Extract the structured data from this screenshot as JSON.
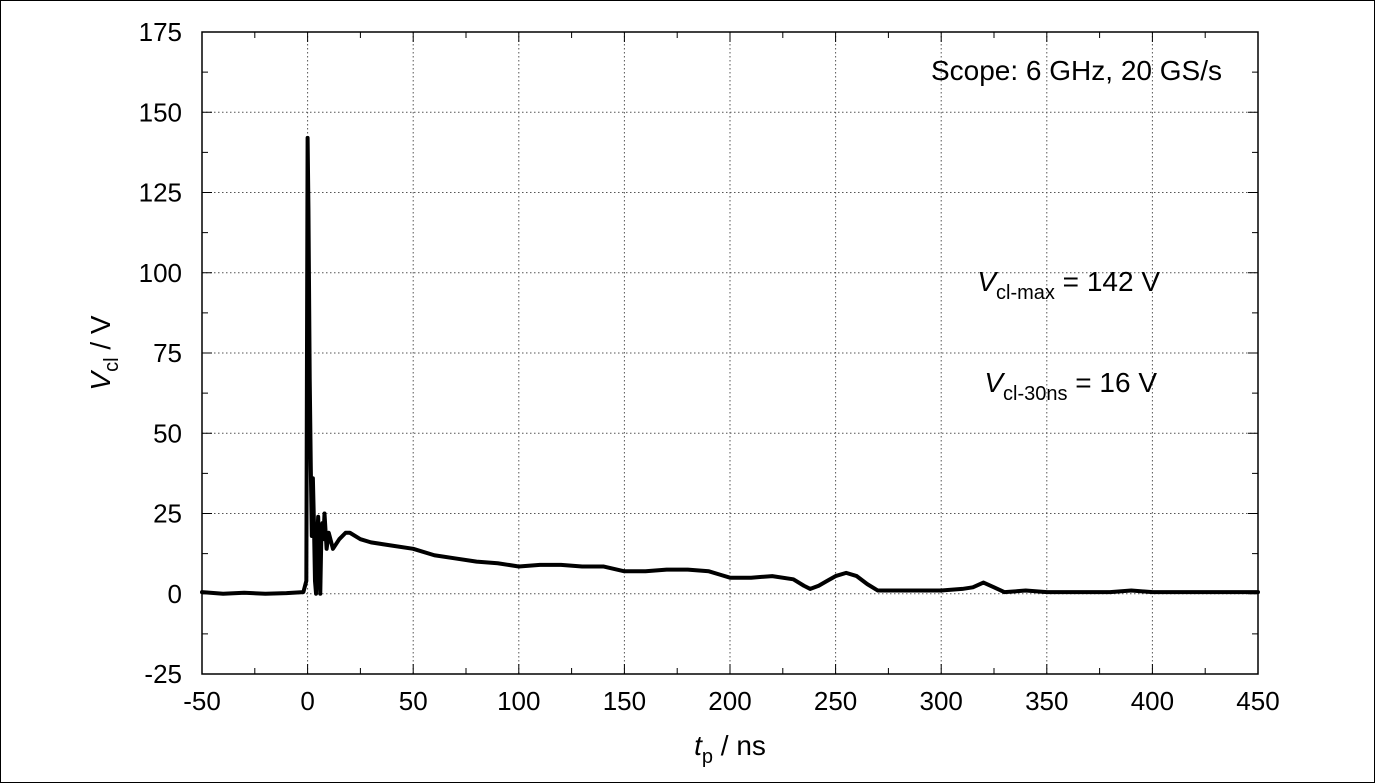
{
  "chart_data": {
    "type": "line",
    "title": "",
    "xlabel": {
      "symbol": "t",
      "subscript": "p",
      "unit": " / ns"
    },
    "ylabel": {
      "symbol": "V",
      "subscript": "cl",
      "unit": " / V"
    },
    "xlim": [
      -50,
      450
    ],
    "ylim": [
      -25,
      175
    ],
    "xticks": [
      -50,
      0,
      50,
      100,
      150,
      200,
      250,
      300,
      350,
      400,
      450
    ],
    "yticks": [
      -25,
      0,
      25,
      50,
      75,
      100,
      125,
      150,
      175
    ],
    "xtick_labels": [
      "-50",
      "0",
      "50",
      "100",
      "150",
      "200",
      "250",
      "300",
      "350",
      "400",
      "450"
    ],
    "ytick_labels": [
      "-25",
      "0",
      "25",
      "50",
      "75",
      "100",
      "125",
      "150",
      "175"
    ],
    "grid": true,
    "grid_style": "dotted",
    "series": [
      {
        "color": "#000000",
        "x": [
          -50,
          -40,
          -30,
          -20,
          -10,
          -2,
          -0.6,
          0,
          0.4,
          1,
          1.5,
          2,
          2.5,
          3,
          3.5,
          4,
          4.5,
          5,
          5.5,
          6,
          6.5,
          7,
          7.5,
          8,
          9,
          10,
          12,
          15,
          18,
          20,
          25,
          30,
          40,
          50,
          60,
          70,
          80,
          90,
          100,
          110,
          120,
          130,
          140,
          150,
          160,
          170,
          180,
          190,
          195,
          200,
          210,
          220,
          230,
          235,
          238,
          242,
          246,
          250,
          255,
          260,
          265,
          270,
          275,
          280,
          290,
          300,
          310,
          315,
          320,
          325,
          330,
          340,
          350,
          360,
          370,
          380,
          390,
          400,
          410,
          420,
          430,
          440,
          450
        ],
        "y": [
          0.5,
          0,
          0.3,
          0,
          0.2,
          0.5,
          4,
          142,
          120,
          67,
          40,
          18,
          36,
          22,
          4,
          0,
          16,
          24,
          12,
          0,
          18,
          22,
          17,
          25,
          14,
          19,
          14,
          17,
          19,
          19,
          17,
          16,
          15,
          14,
          12,
          11,
          10,
          9.5,
          8.5,
          9,
          9,
          8.5,
          8.5,
          7,
          7,
          7.5,
          7.5,
          7,
          6,
          5,
          5,
          5.5,
          4.5,
          2.5,
          1.5,
          2.5,
          4,
          5.5,
          6.5,
          5.5,
          3,
          1,
          1,
          1,
          1,
          1,
          1.5,
          2,
          3.5,
          2,
          0.5,
          1,
          0.5,
          0.5,
          0.5,
          0.5,
          1,
          0.5,
          0.5,
          0.5,
          0.5,
          0.5,
          0.5
        ]
      }
    ],
    "annotations": [
      {
        "text": "Scope: 6 GHz, 20 GS/s"
      },
      {
        "symbol": "V",
        "subscript": "cl-max",
        "rest": " = 142 V"
      },
      {
        "symbol": "V",
        "subscript": "cl-30ns",
        "rest": " = 16 V"
      }
    ]
  }
}
